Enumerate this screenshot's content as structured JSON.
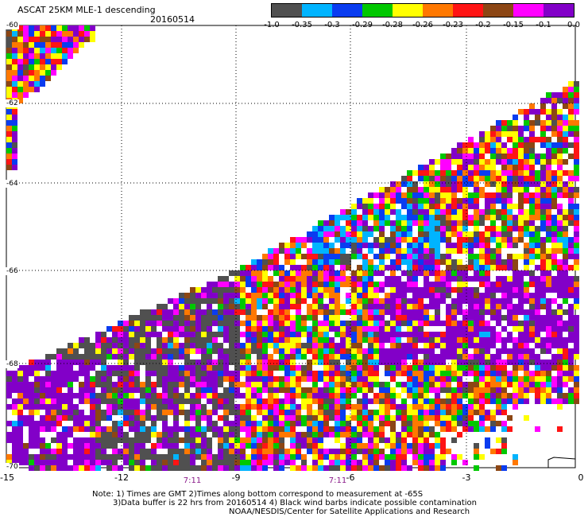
{
  "header": {
    "title": "ASCAT 25KM MLE-1 descending",
    "date": "20160514"
  },
  "colorbar": {
    "colors": [
      "#505050",
      "#00b4ff",
      "#0a3cf0",
      "#00c800",
      "#ffff00",
      "#ff7800",
      "#ff1414",
      "#8c4614",
      "#ff00ff",
      "#8200c8"
    ],
    "ticks": [
      "-1.0",
      "-0.35",
      "-0.3",
      "-0.29",
      "-0.28",
      "-0.26",
      "-0.23",
      "-0.2",
      "-0.15",
      "-0.1",
      "0.0"
    ]
  },
  "axes": {
    "y_labels": [
      "-60",
      "-62",
      "-64",
      "-66",
      "-68",
      "-70"
    ],
    "x_labels": [
      "-15",
      "-12",
      "-9",
      "-6",
      "-3",
      "0"
    ],
    "time_labels": [
      "7:11",
      "7:11"
    ]
  },
  "notes": [
    "Note: 1) Times are GMT 2)Times along bottom correspond to measurement at -65S",
    "3)Data buffer is 22 hrs from 20160514 4) Black wind barbs indicate possible contamination",
    "NOAA/NESDIS/Center for Satellite Applications and Research"
  ]
}
